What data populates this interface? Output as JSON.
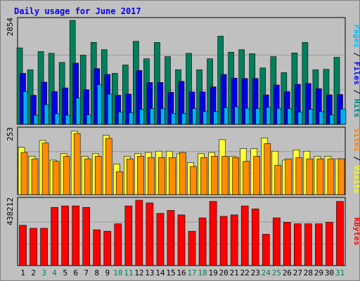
{
  "chart_data": {
    "type": "bar",
    "title": "Daily usage for June 2017",
    "x": [
      "1",
      "2",
      "3",
      "4",
      "5",
      "6",
      "7",
      "8",
      "9",
      "10",
      "11",
      "12",
      "13",
      "14",
      "15",
      "16",
      "17",
      "18",
      "19",
      "20",
      "21",
      "22",
      "23",
      "24",
      "25",
      "26",
      "27",
      "28",
      "29",
      "30",
      "31"
    ],
    "weekend_days": [
      "3",
      "4",
      "10",
      "11",
      "17",
      "18",
      "24",
      "25",
      "31"
    ],
    "panels": [
      {
        "name": "pages-files-hits",
        "ymax_label": "2854",
        "ymax": 2854,
        "axis_label": [
          {
            "text": "Pages",
            "color": "#00c0ff"
          },
          {
            "text": " / ",
            "color": "#000000"
          },
          {
            "text": "Files",
            "color": "#0000ff"
          },
          {
            "text": " / ",
            "color": "#000000"
          },
          {
            "text": "Hits",
            "color": "#008080"
          }
        ],
        "series": [
          {
            "name": "Hits",
            "color": "#00805c",
            "values": [
              2100,
              1500,
              2000,
              1950,
              1700,
              2854,
              1900,
              2250,
              2050,
              1400,
              1630,
              2280,
              1800,
              2250,
              1860,
              1500,
              1950,
              1500,
              1800,
              2420,
              1980,
              2050,
              1940,
              1550,
              1860,
              1420,
              1960,
              2250,
              1500,
              1510,
              1840
            ]
          },
          {
            "name": "Files",
            "color": "#0000e0",
            "values": [
              1400,
              800,
              1160,
              900,
              1000,
              1680,
              950,
              1530,
              1370,
              800,
              830,
              1480,
              1150,
              1150,
              880,
              1180,
              890,
              890,
              1030,
              1370,
              1270,
              1260,
              1260,
              810,
              1080,
              900,
              1100,
              1120,
              980,
              810,
              820
            ]
          },
          {
            "name": "Pages",
            "color": "#00b0f0",
            "values": [
              900,
              250,
              540,
              290,
              250,
              720,
              260,
              1090,
              830,
              340,
              320,
              410,
              430,
              430,
              300,
              300,
              430,
              350,
              350,
              460,
              480,
              440,
              430,
              470,
              440,
              430,
              340,
              410,
              350,
              260,
              420
            ]
          }
        ]
      },
      {
        "name": "sites-visits",
        "ymax_label": "253",
        "ymax": 253,
        "axis_label": [
          {
            "text": "Sites",
            "color": "#ff8000"
          },
          {
            "text": " / ",
            "color": "#000000"
          },
          {
            "text": "Visits",
            "color": "#ffff00"
          }
        ],
        "series": [
          {
            "name": "Visits",
            "color": "#ffff33",
            "values": [
              185,
              150,
              212,
              135,
              160,
              248,
              150,
              160,
              232,
              120,
              150,
              160,
              165,
              170,
              170,
              160,
              125,
              160,
              165,
              215,
              150,
              180,
              180,
              222,
              170,
              135,
              175,
              170,
              150,
              150,
              140
            ]
          },
          {
            "name": "Sites",
            "color": "#ff8c00",
            "values": [
              165,
              140,
              202,
              130,
              150,
              239,
              140,
              150,
              220,
              90,
              140,
              150,
              145,
              145,
              145,
              165,
              110,
              145,
              150,
              150,
              145,
              130,
              150,
              200,
              115,
              140,
              145,
              140,
              140,
              140,
              140
            ]
          }
        ]
      },
      {
        "name": "kbytes",
        "ymax_label": "438212",
        "ymax": 438212,
        "axis_label": [
          {
            "text": "KBytes",
            "color": "#ff0000"
          }
        ],
        "series": [
          {
            "name": "KBytes",
            "color": "#ff0000",
            "values": [
              270000,
              250000,
              250000,
              390000,
              400000,
              400000,
              390000,
              240000,
              230000,
              280000,
              400000,
              438212,
              420000,
              350000,
              370000,
              340000,
              230000,
              320000,
              430000,
              330000,
              340000,
              400000,
              380000,
              210000,
              320000,
              290000,
              280000,
              280000,
              280000,
              290000,
              430000
            ]
          }
        ]
      }
    ]
  }
}
